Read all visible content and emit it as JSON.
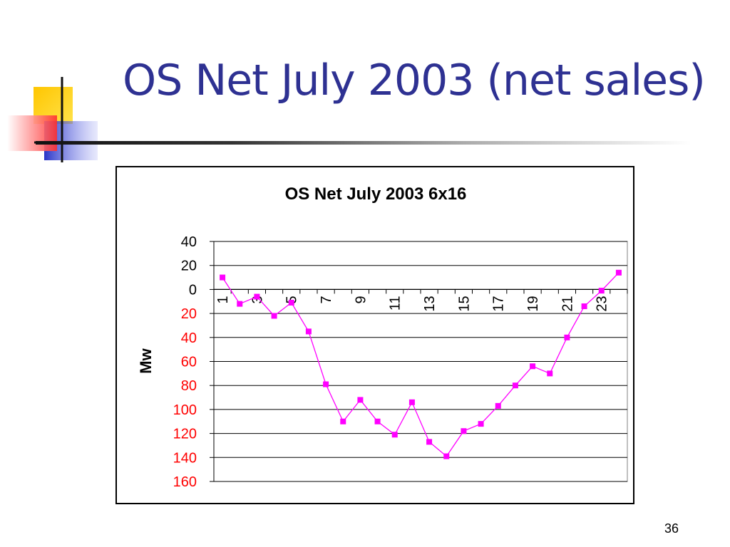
{
  "slide": {
    "title": "OS Net July 2003 (net sales)",
    "page_number": "36"
  },
  "colors": {
    "title": "#2E3192",
    "series": "#FF00FF",
    "negative_tick_labels": "#FF0000",
    "logo_yellow": "#FFD700",
    "logo_blue": "#2A35C8",
    "logo_red": "#FF3B3B"
  },
  "chart_data": {
    "type": "line",
    "title": "OS Net July 2003 6x16",
    "ylabel": "Mw",
    "xlabel": "",
    "grid": true,
    "legend": "none",
    "ylim": [
      -160,
      40
    ],
    "y_ticks": [
      40,
      20,
      0,
      -20,
      -40,
      -60,
      -80,
      -100,
      -120,
      -140,
      -160
    ],
    "y_tick_labels": [
      "40",
      "20",
      "0",
      "20",
      "40",
      "60",
      "80",
      "100",
      "120",
      "140",
      "160"
    ],
    "x": [
      1,
      2,
      3,
      4,
      5,
      6,
      7,
      8,
      9,
      10,
      11,
      12,
      13,
      14,
      15,
      16,
      17,
      18,
      19,
      20,
      21,
      22,
      23,
      24
    ],
    "x_tick_labels": [
      "1",
      "3",
      "5",
      "7",
      "9",
      "11",
      "13",
      "15",
      "17",
      "19",
      "21",
      "23"
    ],
    "series": [
      {
        "values": [
          10,
          -12,
          -6,
          -22,
          -11,
          -35,
          -79,
          -110,
          -92,
          -110,
          -121,
          -94,
          -127,
          -139,
          -118,
          -112,
          -97,
          -80,
          -64,
          -70,
          -40,
          -14,
          -1,
          14
        ],
        "marker": "square"
      }
    ]
  }
}
